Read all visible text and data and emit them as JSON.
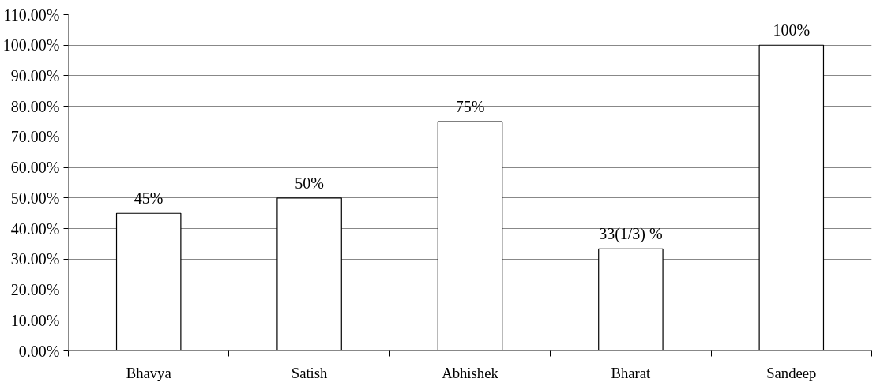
{
  "chart_data": {
    "type": "bar",
    "categories": [
      "Bhavya",
      "Satish",
      "Abhishek",
      "Bharat",
      "Sandeep"
    ],
    "values": [
      45,
      50,
      75,
      33.33,
      100
    ],
    "value_labels": [
      "45%",
      "50%",
      "75%",
      "33(1/3) %",
      "100%"
    ],
    "color": "#ffffff",
    "ylim": [
      0,
      110
    ],
    "yticks": [
      {
        "value": 0,
        "label": "0.00%"
      },
      {
        "value": 10,
        "label": "10.00%"
      },
      {
        "value": 20,
        "label": "20.00%"
      },
      {
        "value": 30,
        "label": "30.00%"
      },
      {
        "value": 40,
        "label": "40.00%"
      },
      {
        "value": 50,
        "label": "50.00%"
      },
      {
        "value": 60,
        "label": "60.00%"
      },
      {
        "value": 70,
        "label": "70.00%"
      },
      {
        "value": 80,
        "label": "80.00%"
      },
      {
        "value": 90,
        "label": "90.00%"
      },
      {
        "value": 100,
        "label": "100.00%"
      },
      {
        "value": 110,
        "label": "110.00%"
      }
    ],
    "grid": "y"
  }
}
